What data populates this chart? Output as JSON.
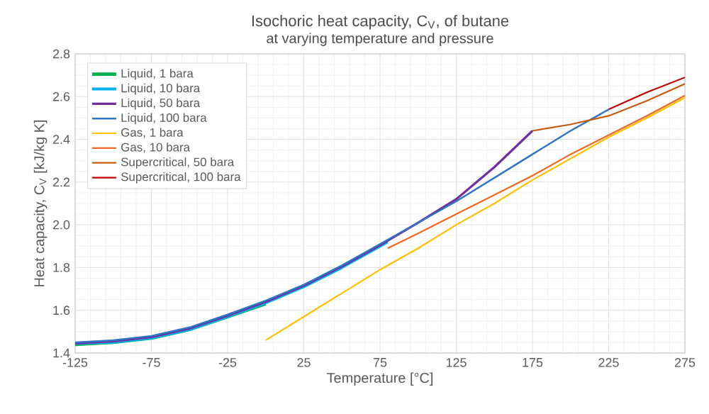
{
  "chart_data": {
    "type": "line",
    "title": "Isochoric heat capacity, C$_{V}$, of butane",
    "subtitle": "at varying temperature and pressure",
    "xlabel": "Temperature  [°C]",
    "ylabel": "Heat capacity, C$_{V}$  [kJ/kg K]",
    "xlim": [
      -125,
      275
    ],
    "xticks": [
      -125,
      -75,
      -25,
      25,
      75,
      125,
      175,
      225,
      275
    ],
    "ylim": [
      1.4,
      2.8
    ],
    "yticks": [
      {
        "value": 1.4,
        "label": "1.4"
      },
      {
        "value": 1.6,
        "label": "1.6"
      },
      {
        "value": 1.8,
        "label": "1.8"
      },
      {
        "value": 2.0,
        "label": "2.0"
      },
      {
        "value": 2.2,
        "label": "2.2"
      },
      {
        "value": 2.4,
        "label": "2.4"
      },
      {
        "value": 2.6,
        "label": "2.6"
      },
      {
        "value": 2.8,
        "label": "2.8"
      }
    ],
    "grid": true,
    "legend": "top left",
    "marker": "none",
    "line_style": "solid",
    "series": [
      {
        "name": "Liquid, 1 bara",
        "color": "#00b050",
        "x": [
          -125,
          -100,
          -75,
          -50,
          -25,
          0
        ],
        "values": [
          1.44,
          1.45,
          1.47,
          1.51,
          1.57,
          1.63
        ]
      },
      {
        "name": "Liquid, 10 bara",
        "color": "#00b0f0",
        "x": [
          -125,
          -100,
          -75,
          -50,
          -25,
          0,
          25,
          50,
          75,
          80
        ],
        "values": [
          1.445,
          1.45,
          1.47,
          1.51,
          1.57,
          1.635,
          1.71,
          1.8,
          1.9,
          1.92
        ]
      },
      {
        "name": "Liquid, 50 bara",
        "color": "#7030a0",
        "x": [
          -125,
          -100,
          -75,
          -50,
          -25,
          0,
          25,
          50,
          75,
          100,
          125,
          150,
          175
        ],
        "values": [
          1.445,
          1.455,
          1.475,
          1.515,
          1.575,
          1.64,
          1.715,
          1.805,
          1.905,
          2.01,
          2.12,
          2.27,
          2.44
        ]
      },
      {
        "name": "Liquid, 100 bara",
        "color": "#2e75c5",
        "x": [
          -125,
          -100,
          -75,
          -50,
          -25,
          0,
          25,
          50,
          75,
          100,
          125,
          150,
          175,
          200,
          225
        ],
        "values": [
          1.45,
          1.46,
          1.48,
          1.52,
          1.58,
          1.645,
          1.72,
          1.81,
          1.91,
          2.01,
          2.11,
          2.22,
          2.33,
          2.44,
          2.54
        ]
      },
      {
        "name": "Gas, 1 bara",
        "color": "#ffc000",
        "x": [
          0,
          25,
          50,
          75,
          100,
          125,
          150,
          175,
          200,
          225,
          250,
          275
        ],
        "values": [
          1.46,
          1.57,
          1.68,
          1.79,
          1.89,
          2.0,
          2.1,
          2.21,
          2.31,
          2.41,
          2.5,
          2.595
        ]
      },
      {
        "name": "Gas, 10 bara",
        "color": "#f26522",
        "x": [
          80,
          100,
          125,
          150,
          175,
          200,
          225,
          250,
          275
        ],
        "values": [
          1.89,
          1.96,
          2.05,
          2.14,
          2.23,
          2.33,
          2.42,
          2.51,
          2.605
        ]
      },
      {
        "name": "Supercritical, 50 bara",
        "color": "#c55a11",
        "x": [
          175,
          200,
          225,
          250,
          275
        ],
        "values": [
          2.44,
          2.47,
          2.51,
          2.58,
          2.66
        ]
      },
      {
        "name": "Supercritical, 100 bara",
        "color": "#c00000",
        "x": [
          225,
          250,
          275
        ],
        "values": [
          2.54,
          2.62,
          2.69
        ]
      }
    ]
  }
}
